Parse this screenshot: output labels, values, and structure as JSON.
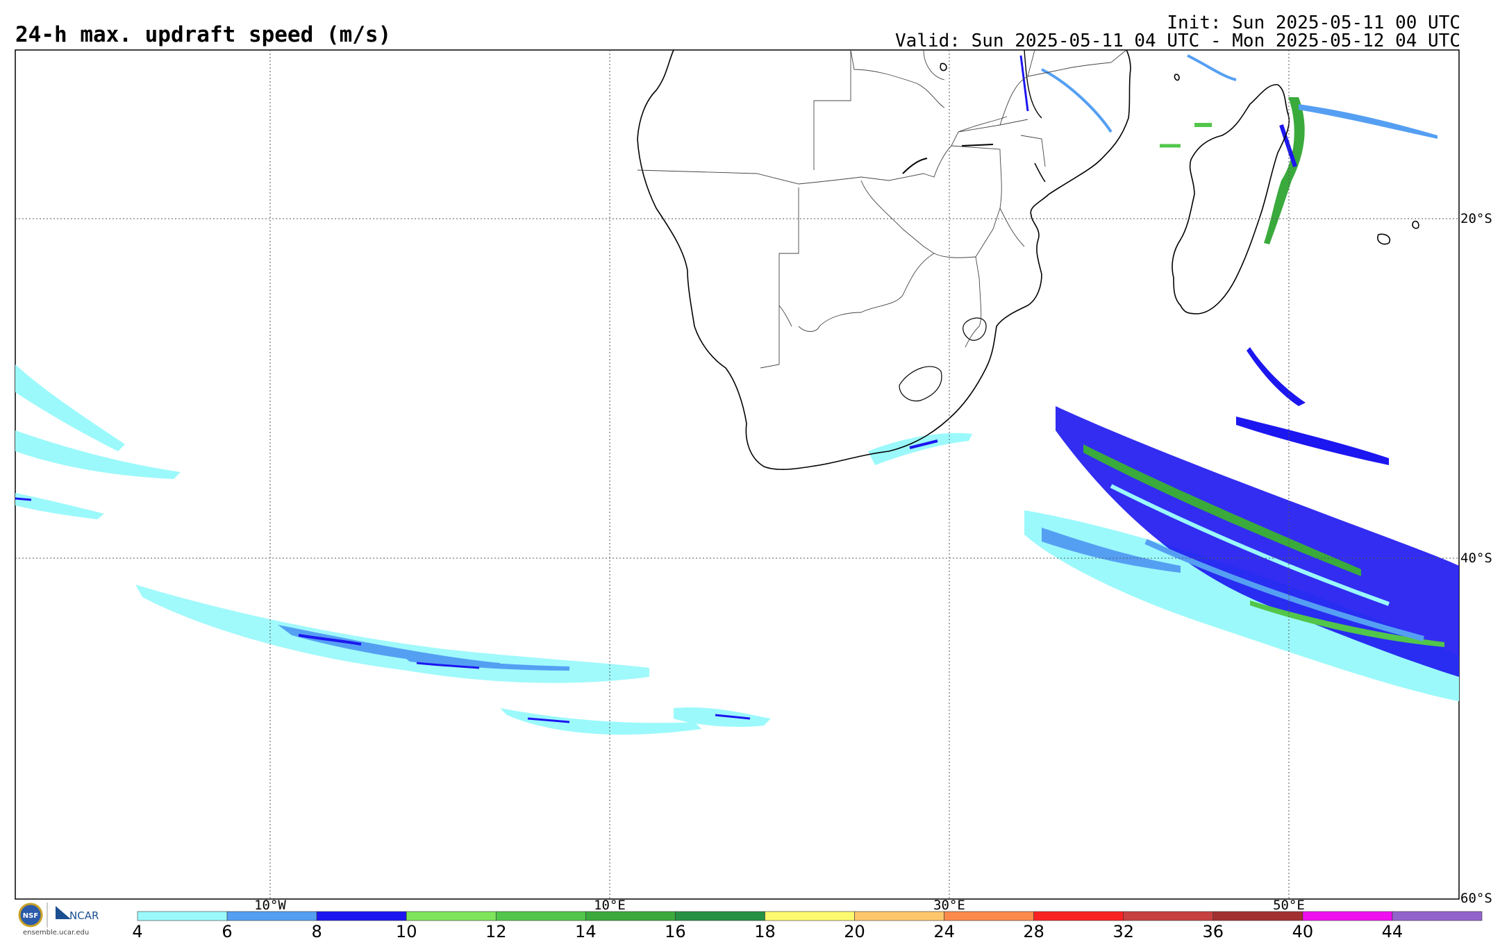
{
  "title": "24-h max. updraft speed (m/s)",
  "init": "Init: Sun 2025-05-11 00 UTC",
  "valid": "Valid: Sun 2025-05-11 04 UTC - Mon 2025-05-12 04 UTC",
  "lon_labels": [
    "10°W",
    "10°E",
    "30°E",
    "50°E"
  ],
  "lat_labels": [
    "20°S",
    "40°S",
    "60°S"
  ],
  "colorbar": {
    "colors": [
      "#9bf9fb",
      "#559ff3",
      "#1c16f0",
      "#7fe55b",
      "#52c64a",
      "#3aaa3c",
      "#269142",
      "#fdfa6f",
      "#fec76c",
      "#fd8a4b",
      "#f92223",
      "#c84040",
      "#a23030",
      "#f00ff0",
      "#9363cc"
    ],
    "ticks": [
      "4",
      "6",
      "8",
      "10",
      "12",
      "14",
      "16",
      "18",
      "20",
      "24",
      "28",
      "32",
      "36",
      "40",
      "44"
    ]
  },
  "logo": {
    "nsf": "NSF",
    "ncar": "NCAR",
    "url": "ensemble.ucar.edu"
  }
}
